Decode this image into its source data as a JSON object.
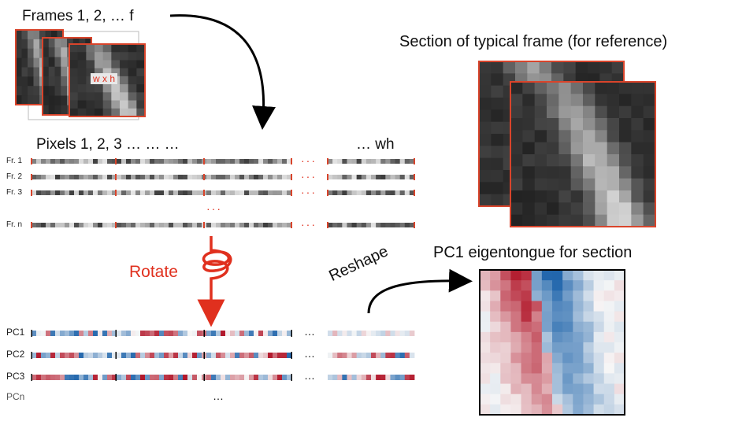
{
  "labels": {
    "frames": "Frames 1, 2, … f",
    "wxh": "w x h",
    "pixels": "Pixels 1, 2, 3 … … …",
    "wh": "… wh",
    "section_title": "Section of typical frame (for reference)",
    "pc1_title": "PC1 eigentongue for section",
    "rotate": "Rotate",
    "reshape": "Reshape",
    "red_dots": "···",
    "black_dots": "…"
  },
  "frame_rows": [
    "Fr. 1",
    "Fr. 2",
    "Fr. 3",
    "Fr. n"
  ],
  "pc_rows": [
    "PC1",
    "PC2",
    "PC3",
    "PCn"
  ],
  "colors": {
    "accent_red": "#e0301e",
    "frame_border": "#d9442b",
    "pc_red": "#b2182b",
    "pc_blue": "#2166ac"
  },
  "icons": [
    "curved-arrow-icon",
    "rotate-arrow-icon",
    "reshape-arrow-icon"
  ]
}
